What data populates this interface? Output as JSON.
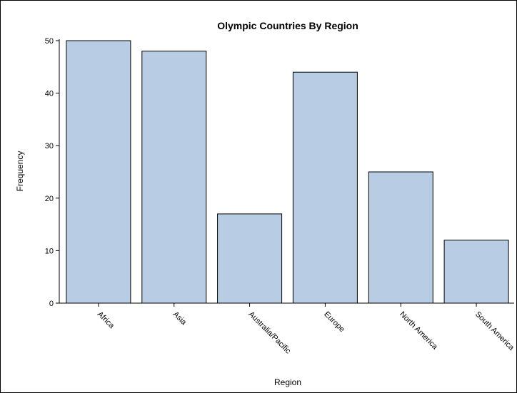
{
  "chart_data": {
    "type": "bar",
    "title": "Olympic Countries By Region",
    "xlabel": "Region",
    "ylabel": "Frequency",
    "categories": [
      "Africa",
      "Asia",
      "Australia/Pacific",
      "Europe",
      "North America",
      "South America"
    ],
    "values": [
      50,
      48,
      17,
      44,
      25,
      12
    ],
    "ylim": [
      0,
      50
    ],
    "yticks": [
      0,
      10,
      20,
      30,
      40,
      50
    ],
    "grid": false,
    "colors": {
      "bar_fill": "#b8cce4",
      "bar_stroke": "#000000"
    }
  }
}
